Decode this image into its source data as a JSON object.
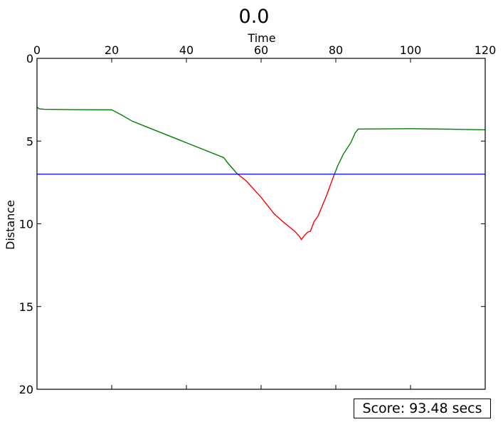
{
  "chart_data": {
    "type": "line",
    "title": "0.0",
    "xlabel": "Time",
    "ylabel": "Distance",
    "xlim": [
      0,
      120
    ],
    "ylim": [
      0,
      20
    ],
    "y_inverted": true,
    "x_axis_position": "top",
    "x_ticks": [
      0,
      20,
      40,
      60,
      80,
      100,
      120
    ],
    "y_ticks": [
      0,
      5,
      10,
      15,
      20
    ],
    "grid": false,
    "colors": {
      "within": "#008000",
      "exceed": "#ff0000",
      "threshold": "#0000ff"
    },
    "threshold": 7,
    "series": [
      {
        "values": [
          [
            0,
            2.95
          ],
          [
            0.6,
            3.05
          ],
          [
            2,
            3.08
          ],
          [
            10,
            3.1
          ],
          [
            20,
            3.11
          ],
          [
            22.5,
            3.4
          ],
          [
            25.5,
            3.8
          ],
          [
            30,
            4.2
          ],
          [
            40,
            5.1
          ],
          [
            50,
            6.0
          ],
          [
            51,
            6.3
          ],
          [
            53.5,
            6.95
          ],
          [
            56,
            7.4
          ],
          [
            60,
            8.4
          ],
          [
            63.5,
            9.4
          ],
          [
            66,
            9.9
          ],
          [
            69,
            10.45
          ],
          [
            70.2,
            10.75
          ],
          [
            70.8,
            10.95
          ],
          [
            71.6,
            10.7
          ],
          [
            72.5,
            10.5
          ],
          [
            73.2,
            10.45
          ],
          [
            74.2,
            9.85
          ],
          [
            75.2,
            9.55
          ],
          [
            77.5,
            8.3
          ],
          [
            79.2,
            7.25
          ],
          [
            80.5,
            6.5
          ],
          [
            82,
            5.8
          ],
          [
            84,
            5.1
          ],
          [
            85.2,
            4.5
          ],
          [
            86,
            4.27
          ],
          [
            100,
            4.25
          ],
          [
            110,
            4.28
          ],
          [
            120,
            4.32
          ]
        ]
      }
    ]
  },
  "score": {
    "text": "Score: 93.48 secs"
  }
}
